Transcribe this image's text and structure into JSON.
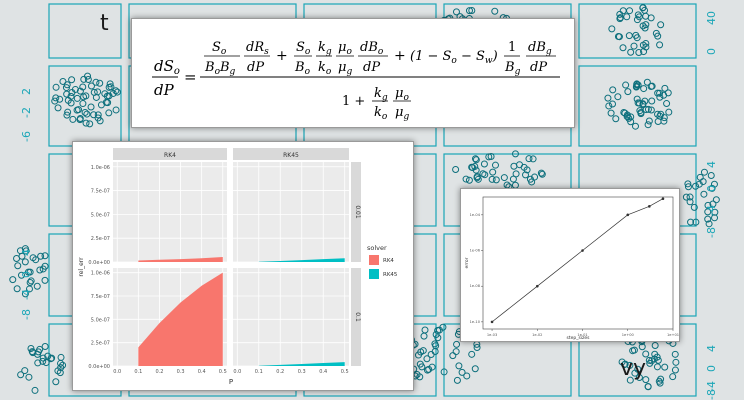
{
  "background": {
    "description_colors": {
      "bg": "#dfe3e4",
      "accent": "#1aa6b7"
    },
    "panel_labels": [
      "t",
      "vy"
    ],
    "ticks": {
      "t_right": [
        "40",
        "0"
      ],
      "x_left": [
        "2",
        "-2",
        "-6"
      ],
      "vy_left": [
        "4",
        "0",
        "-4",
        "-8"
      ],
      "right_col": [
        "4",
        "0",
        "-4",
        "-8"
      ],
      "vy_right": [
        "4",
        "0",
        "-4",
        "-8"
      ]
    }
  },
  "equation": {
    "lhs_num": "dS",
    "lhs_num_sub": "o",
    "lhs_den": "dP",
    "t1_num_a": "S",
    "t1_num_a_sub": "o",
    "t1_den": "B",
    "t1_den_sub1": "o",
    "t1_den_b": "B",
    "t1_den_sub2": "g",
    "t1b_num": "dR",
    "t1b_num_sub": "s",
    "t1b_den": "dP",
    "t2a_num": "S",
    "t2a_num_sub": "o",
    "t2a_den": "B",
    "t2a_den_sub": "o",
    "t2b_num": "k",
    "t2b_num_sub": "g",
    "t2b_den": "k",
    "t2b_den_sub": "o",
    "t2c_num": "μ",
    "t2c_num_sub": "o",
    "t2c_den": "μ",
    "t2c_den_sub": "g",
    "t2d_num": "dB",
    "t2d_num_sub": "o",
    "t2d_den": "dP",
    "t3_paren": "(1 − S",
    "t3_sub1": "o",
    "t3_mid": " − S",
    "t3_sub2": "w",
    "t3_close": ")",
    "t3a_num": "1",
    "t3a_den": "B",
    "t3a_den_sub": "g",
    "t3b_num": "dB",
    "t3b_num_sub": "g",
    "t3b_den": "dP",
    "bottom_one": "1 +",
    "b1_num": "k",
    "b1_num_sub": "g",
    "b1_den": "k",
    "b1_den_sub": "o",
    "b2_num": "μ",
    "b2_num_sub": "o",
    "b2_den": "μ",
    "b2_den_sub": "g",
    "equals": "=",
    "plus": "+"
  },
  "chart_data": [
    {
      "type": "area",
      "facet_columns": [
        "RK4",
        "RK45"
      ],
      "facet_rows": [
        "0.01",
        "0.1"
      ],
      "x": [
        0.1,
        0.2,
        0.3,
        0.4,
        0.5
      ],
      "xlim": [
        -0.02,
        0.52
      ],
      "ylim": [
        0,
        1.05e-06
      ],
      "xlabel": "P",
      "ylabel": "rel_err",
      "y_ticks": [
        "0.0e+00",
        "2.5e-07",
        "5.0e-07",
        "7.5e-07",
        "1.0e-06"
      ],
      "x_ticks": [
        "0.0",
        "0.1",
        "0.2",
        "0.3",
        "0.4",
        "0.5"
      ],
      "legend": {
        "title": "solver",
        "entries": [
          "RK4",
          "RK45"
        ],
        "placement": "right"
      },
      "colors": {
        "RK4": "#f8766d",
        "RK45": "#00bfc4"
      },
      "panels": [
        {
          "column": "RK4",
          "row": "0.01",
          "series": "RK4",
          "values": [
            1.6e-08,
            2.3e-08,
            3e-08,
            4e-08,
            5.2e-08
          ]
        },
        {
          "column": "RK45",
          "row": "0.01",
          "series": "RK45",
          "values": [
            3e-09,
            1e-08,
            2e-08,
            3e-08,
            4e-08
          ]
        },
        {
          "column": "RK4",
          "row": "0.1",
          "series": "RK4",
          "values": [
            2e-07,
            4.6e-07,
            6.8e-07,
            8.6e-07,
            1e-06
          ]
        },
        {
          "column": "RK45",
          "row": "0.1",
          "series": "RK45",
          "values": [
            3e-09,
            1.2e-08,
            2.2e-08,
            3.2e-08,
            4.2e-08
          ]
        }
      ]
    },
    {
      "type": "line",
      "xlabel": "step_sizes",
      "ylabel": "error",
      "log_x": true,
      "log_y": true,
      "x": [
        0.001,
        0.01,
        0.1,
        1,
        3,
        6
      ],
      "y": [
        1e-10,
        1e-08,
        1e-06,
        0.0001,
        0.0003,
        0.0008
      ],
      "x_ticks": [
        "1e-03",
        "1e-02",
        "1e-01",
        "1e+00",
        "1e+01"
      ],
      "y_ticks": [
        "1e-10",
        "1e-08",
        "1e-06",
        "1e-04"
      ]
    }
  ]
}
